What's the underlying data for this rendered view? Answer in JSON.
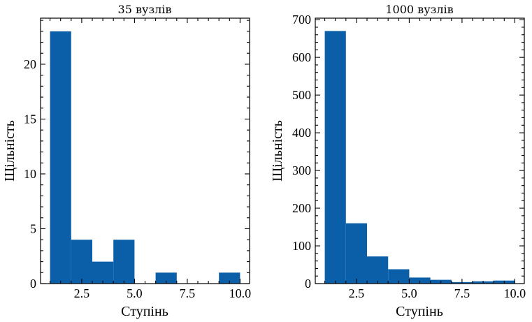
{
  "colors": {
    "bar": "#0b5fa8"
  },
  "chart_data": [
    {
      "type": "bar",
      "title": "35 вузлів",
      "xlabel": "Ступінь",
      "ylabel": "Щільність",
      "bins": [
        [
          1,
          2
        ],
        [
          2,
          3
        ],
        [
          3,
          4
        ],
        [
          4,
          5
        ],
        [
          5,
          6
        ],
        [
          6,
          7
        ],
        [
          7,
          8
        ],
        [
          8,
          9
        ],
        [
          9,
          10
        ]
      ],
      "values": [
        23,
        4,
        2,
        4,
        0,
        1,
        0,
        0,
        1
      ],
      "xlim": [
        0.55,
        10.45
      ],
      "ylim": [
        0,
        24.2
      ],
      "xticks": [
        2.5,
        5.0,
        7.5,
        10.0
      ],
      "xtick_labels": [
        "2.5",
        "5.0",
        "7.5",
        "10.0"
      ],
      "yticks": [
        0,
        5,
        10,
        15,
        20
      ],
      "ytick_labels": [
        "0",
        "5",
        "10",
        "15",
        "20"
      ],
      "x_minor_step": 0.5,
      "y_minor_step": 1
    },
    {
      "type": "bar",
      "title": "1000 вузлів",
      "xlabel": "Ступінь",
      "ylabel": "Щільність",
      "bins": [
        [
          1,
          2
        ],
        [
          2,
          3
        ],
        [
          3,
          4
        ],
        [
          4,
          5
        ],
        [
          5,
          6
        ],
        [
          6,
          7
        ],
        [
          7,
          8
        ],
        [
          8,
          9
        ],
        [
          9,
          10
        ]
      ],
      "values": [
        670,
        160,
        72,
        38,
        16,
        10,
        4,
        6,
        8
      ],
      "xlim": [
        0.55,
        10.45
      ],
      "ylim": [
        0,
        704
      ],
      "xticks": [
        2.5,
        5.0,
        7.5,
        10.0
      ],
      "xtick_labels": [
        "2.5",
        "5.0",
        "7.5",
        "10.0"
      ],
      "yticks": [
        0,
        100,
        200,
        300,
        400,
        500,
        600,
        700
      ],
      "ytick_labels": [
        "0",
        "100",
        "200",
        "300",
        "400",
        "500",
        "600",
        "700"
      ],
      "x_minor_step": 0.5,
      "y_minor_step": 20
    }
  ]
}
